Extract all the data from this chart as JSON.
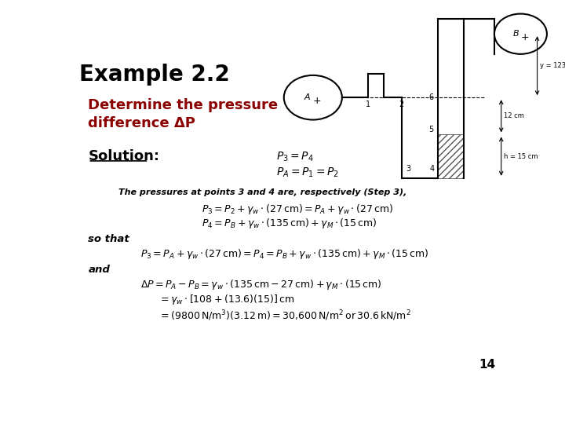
{
  "title": "Example 2.2",
  "subtitle_line1": "Determine the pressure",
  "subtitle_line2": "difference ΔP",
  "solution_label": "Solution:",
  "eq1": "$P_3 = P_4$",
  "eq2": "$P_A = P_1 = P_2$",
  "step_label": "The pressures at points 3 and 4 are, respectively (Step 3),",
  "eq3": "$P_3 = P_2 + \\gamma_w \\cdot (27\\,\\mathrm{cm}) = P_A + \\gamma_w \\cdot (27\\,\\mathrm{cm})$",
  "eq4": "$P_4 = P_B + \\gamma_w \\cdot (135\\,\\mathrm{cm}) + \\gamma_M \\cdot (15\\,\\mathrm{cm})$",
  "so_that": "so that",
  "eq5": "$P_3 = P_A + \\gamma_w \\cdot (27\\,\\mathrm{cm}) = P_4 = P_B + \\gamma_w \\cdot (135\\,\\mathrm{cm}) + \\gamma_M \\cdot (15\\,\\mathrm{cm})$",
  "and_label": "and",
  "eq6a": "$\\Delta P = P_A - P_B = \\gamma_w \\cdot (135\\,\\mathrm{cm} - 27\\,\\mathrm{cm}) + \\gamma_M \\cdot (15\\,\\mathrm{cm})$",
  "eq6b": "$= \\gamma_w \\cdot [108 + (13.6)(15)]\\,\\mathrm{cm}$",
  "eq6c": "$= (9800\\,\\mathrm{N/m^3})(3.12\\,\\mathrm{m}) = 30{,}600\\,\\mathrm{N/m^2}\\,\\mathrm{or}\\,30.6\\,\\mathrm{kN/m^2}$",
  "page_number": "14",
  "bg_color": "#ffffff",
  "title_color": "#000000",
  "subtitle_color": "#8b0000",
  "text_color": "#000000"
}
